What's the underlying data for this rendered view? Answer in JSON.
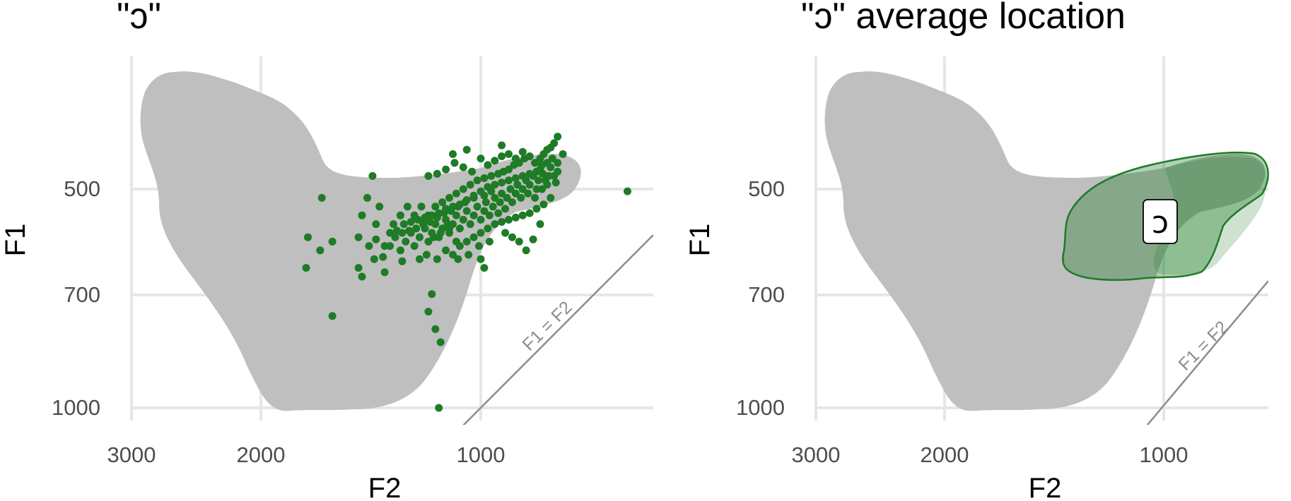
{
  "chart_data": [
    {
      "type": "scatter",
      "title": "\"ɔ\"",
      "xlabel": "F2",
      "ylabel": "F1",
      "x_reversed": true,
      "y_reversed": true,
      "xlim": [
        3000,
        210
      ],
      "ylim": [
        250,
        1030
      ],
      "xticks": [
        3000,
        2000,
        1000
      ],
      "xtick_labels": [
        "3000",
        "2000",
        "1000"
      ],
      "yticks": [
        500,
        700,
        1000
      ],
      "ytick_labels": [
        "500",
        "700",
        "1000"
      ],
      "grid": true,
      "reference_line": {
        "label": "F1 = F2"
      },
      "background_region": "all-vowels space",
      "point_color": "#1e7b26",
      "series": [
        {
          "points": [
            [
              530,
              420
            ],
            [
              560,
              440
            ],
            [
              560,
              460
            ],
            [
              570,
              485
            ],
            [
              580,
              470
            ],
            [
              600,
              450
            ],
            [
              610,
              470
            ],
            [
              620,
              490
            ],
            [
              630,
              480
            ],
            [
              645,
              465
            ],
            [
              650,
              500
            ],
            [
              660,
              455
            ],
            [
              670,
              480
            ],
            [
              680,
              500
            ],
            [
              690,
              520
            ],
            [
              700,
              470
            ],
            [
              720,
              490
            ],
            [
              730,
              510
            ],
            [
              740,
              480
            ],
            [
              760,
              500
            ],
            [
              770,
              520
            ],
            [
              790,
              490
            ],
            [
              800,
              510
            ],
            [
              820,
              530
            ],
            [
              830,
              500
            ],
            [
              850,
              520
            ],
            [
              860,
              545
            ],
            [
              880,
              510
            ],
            [
              890,
              530
            ],
            [
              900,
              555
            ],
            [
              920,
              520
            ],
            [
              930,
              540
            ],
            [
              950,
              560
            ],
            [
              970,
              530
            ],
            [
              980,
              550
            ],
            [
              1000,
              570
            ],
            [
              1020,
              540
            ],
            [
              1040,
              560
            ],
            [
              1060,
              580
            ],
            [
              1080,
              550
            ],
            [
              1100,
              570
            ],
            [
              1120,
              590
            ],
            [
              1140,
              560
            ],
            [
              1160,
              580
            ],
            [
              1180,
              600
            ],
            [
              1200,
              570
            ],
            [
              1220,
              590
            ],
            [
              1240,
              610
            ],
            [
              1260,
              580
            ],
            [
              1280,
              600
            ],
            [
              1300,
              620
            ],
            [
              1320,
              590
            ],
            [
              1350,
              610
            ],
            [
              1380,
              630
            ],
            [
              1400,
              600
            ],
            [
              1430,
              620
            ],
            [
              1460,
              640
            ],
            [
              1490,
              610
            ],
            [
              1520,
              630
            ],
            [
              1560,
              655
            ],
            [
              1600,
              580
            ],
            [
              1640,
              630
            ],
            [
              1680,
              560
            ],
            [
              1700,
              610
            ],
            [
              1620,
              470
            ],
            [
              1650,
              520
            ],
            [
              1580,
              540
            ],
            [
              1500,
              580
            ],
            [
              1460,
              560
            ],
            [
              1420,
              540
            ],
            [
              1380,
              560
            ],
            [
              1340,
              540
            ],
            [
              1300,
              560
            ],
            [
              1260,
              540
            ],
            [
              1220,
              530
            ],
            [
              1180,
              520
            ],
            [
              1140,
              510
            ],
            [
              1100,
              500
            ],
            [
              1060,
              490
            ],
            [
              1020,
              480
            ],
            [
              980,
              475
            ],
            [
              940,
              470
            ],
            [
              900,
              465
            ],
            [
              870,
              460
            ],
            [
              840,
              455
            ],
            [
              810,
              445
            ],
            [
              780,
              440
            ],
            [
              750,
              430
            ],
            [
              720,
              425
            ],
            [
              690,
              440
            ],
            [
              660,
              430
            ],
            [
              640,
              420
            ],
            [
              620,
              410
            ],
            [
              600,
              405
            ],
            [
              580,
              395
            ],
            [
              560,
              380
            ],
            [
              1300,
              470
            ],
            [
              1250,
              465
            ],
            [
              1200,
              455
            ],
            [
              1150,
              440
            ],
            [
              1100,
              450
            ],
            [
              1050,
              460
            ],
            [
              1000,
              430
            ],
            [
              960,
              445
            ],
            [
              920,
              435
            ],
            [
              880,
              425
            ],
            [
              840,
              420
            ],
            [
              800,
              430
            ],
            [
              760,
              415
            ],
            [
              1160,
              420
            ],
            [
              1080,
              410
            ],
            [
              880,
              400
            ],
            [
              940,
              505
            ],
            [
              980,
              515
            ],
            [
              1040,
              520
            ],
            [
              1090,
              530
            ],
            [
              1130,
              540
            ],
            [
              1170,
              550
            ],
            [
              1210,
              555
            ],
            [
              1250,
              565
            ],
            [
              1290,
              575
            ],
            [
              1330,
              580
            ],
            [
              1370,
              590
            ],
            [
              1410,
              595
            ],
            [
              1450,
              600
            ],
            [
              1200,
              640
            ],
            [
              1160,
              650
            ],
            [
              1120,
              630
            ],
            [
              1080,
              620
            ],
            [
              1040,
              610
            ],
            [
              1000,
              600
            ],
            [
              960,
              590
            ],
            [
              920,
              580
            ],
            [
              880,
              575
            ],
            [
              840,
              570
            ],
            [
              800,
              565
            ],
            [
              760,
              560
            ],
            [
              720,
              555
            ],
            [
              680,
              545
            ],
            [
              640,
              535
            ],
            [
              600,
              520
            ],
            [
              860,
              600
            ],
            [
              820,
              610
            ],
            [
              780,
              620
            ],
            [
              740,
              640
            ],
            [
              700,
              615
            ],
            [
              660,
              580
            ],
            [
              950,
              620
            ],
            [
              1010,
              630
            ],
            [
              1070,
              650
            ],
            [
              1130,
              660
            ],
            [
              1190,
              580
            ],
            [
              1230,
              600
            ],
            [
              1270,
              610
            ],
            [
              1310,
              650
            ],
            [
              1350,
              660
            ],
            [
              1450,
              665
            ],
            [
              1550,
              630
            ],
            [
              1600,
              615
            ],
            [
              1520,
              600
            ],
            [
              1480,
              595
            ],
            [
              1440,
              580
            ],
            [
              1400,
              575
            ],
            [
              1360,
              570
            ],
            [
              1320,
              565
            ],
            [
              1280,
              560
            ],
            [
              1240,
              555
            ],
            [
              1200,
              545
            ],
            [
              1160,
              540
            ],
            [
              1120,
              535
            ],
            [
              1080,
              525
            ],
            [
              1040,
              515
            ],
            [
              1000,
              505
            ],
            [
              960,
              495
            ],
            [
              920,
              490
            ],
            [
              880,
              485
            ],
            [
              840,
              480
            ],
            [
              800,
              475
            ],
            [
              760,
              470
            ],
            [
              720,
              465
            ],
            [
              680,
              460
            ],
            [
              650,
              445
            ],
            [
              620,
              440
            ],
            [
              590,
              430
            ],
            [
              1000,
              660
            ],
            [
              1280,
              740
            ],
            [
              1300,
              780
            ],
            [
              1260,
              820
            ],
            [
              1230,
              850
            ],
            [
              1910,
              520
            ],
            [
              1920,
              640
            ],
            [
              1990,
              610
            ],
            [
              2000,
              680
            ],
            [
              1680,
              700
            ],
            [
              1550,
              690
            ],
            [
              1610,
              660
            ],
            [
              1700,
              680
            ],
            [
              1850,
              790
            ],
            [
              1850,
              620
            ],
            [
              980,
              680
            ],
            [
              1240,
              1000
            ],
            [
              160,
              505
            ],
            [
              1250,
              660
            ],
            [
              1180,
              590
            ],
            [
              1140,
              620
            ]
          ]
        }
      ]
    },
    {
      "type": "area",
      "title": "\"ɔ\" average location",
      "xlabel": "F2",
      "ylabel": "F1",
      "x_reversed": true,
      "y_reversed": true,
      "xlim": [
        3000,
        210
      ],
      "ylim": [
        250,
        1030
      ],
      "xticks": [
        3000,
        2000,
        1000
      ],
      "xtick_labels": [
        "3000",
        "2000",
        "1000"
      ],
      "yticks": [
        500,
        700,
        1000
      ],
      "ytick_labels": [
        "500",
        "700",
        "1000"
      ],
      "grid": true,
      "reference_line": {
        "label": "F1 = F2"
      },
      "background_region": "all-vowels space",
      "region_color": "#1e7b26",
      "vowel_label": "ɔ",
      "vowel_center": {
        "F2": 1000,
        "F1": 552
      }
    }
  ]
}
